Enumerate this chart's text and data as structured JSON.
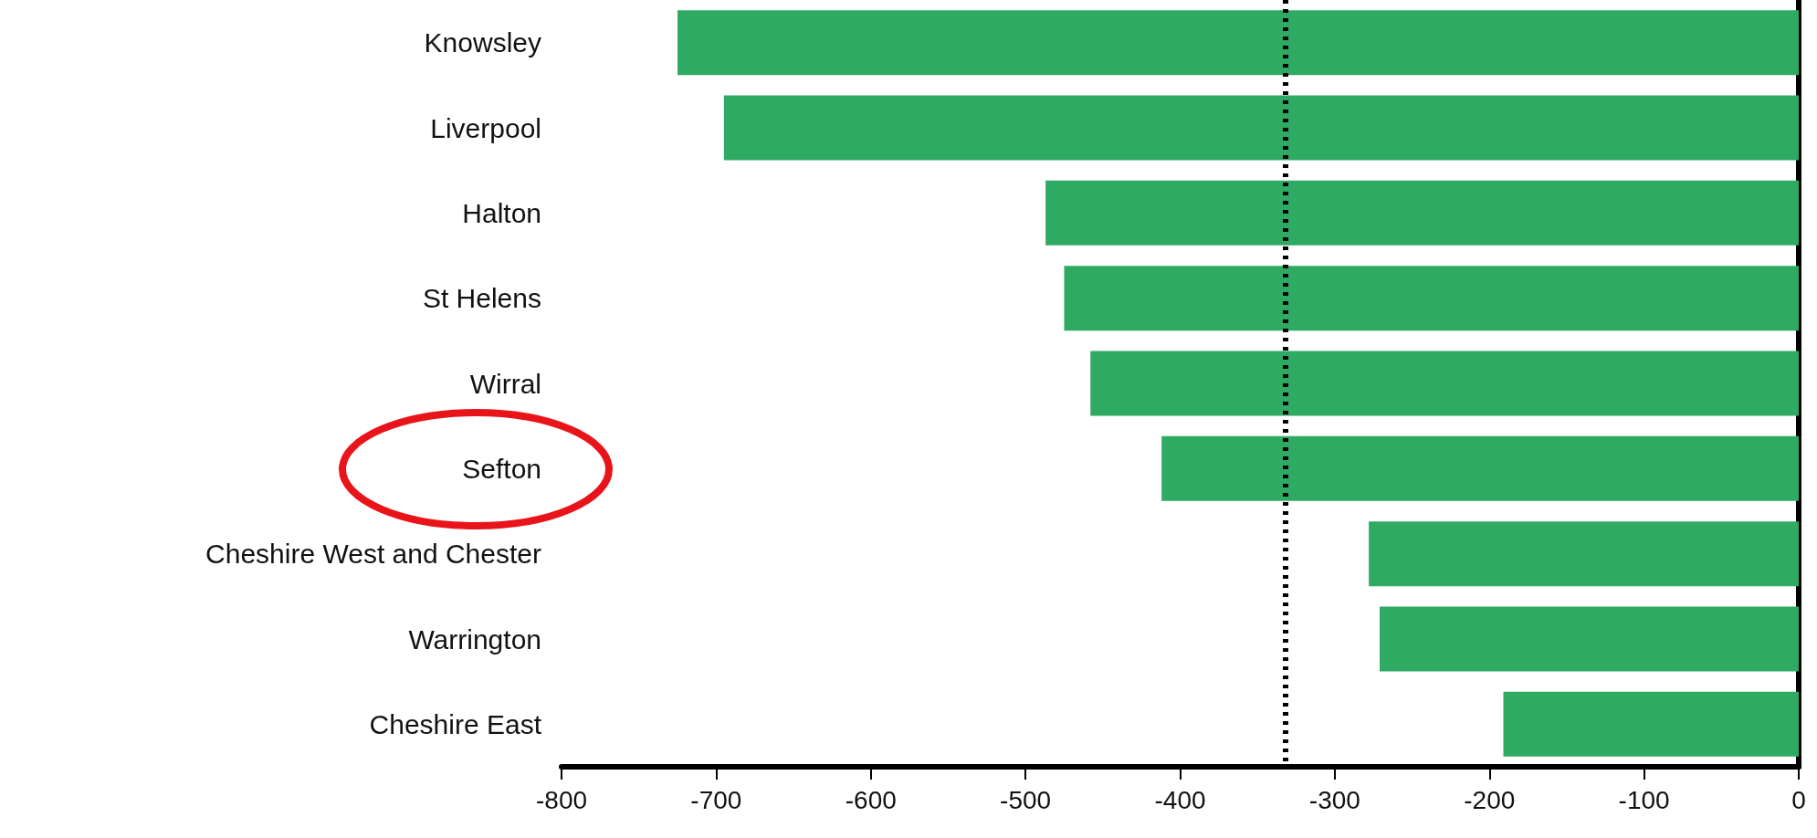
{
  "chart_data": {
    "type": "bar",
    "orientation": "horizontal",
    "categories": [
      "Knowsley",
      "Liverpool",
      "Halton",
      "St Helens",
      "Wirral",
      "Sefton",
      "Cheshire West and Chester",
      "Warrington",
      "Cheshire East"
    ],
    "values": [
      -725,
      -695,
      -487,
      -475,
      -458,
      -412,
      -278,
      -271,
      -191
    ],
    "color": "#2eaa62",
    "xlim": [
      -800,
      0
    ],
    "xticks": [
      -800,
      -700,
      -600,
      -500,
      -400,
      -300,
      -200,
      -100,
      0
    ],
    "ref_lines": [
      {
        "axis": "x",
        "value": -332,
        "color": "#000000",
        "line_style": "dotted"
      }
    ]
  }
}
